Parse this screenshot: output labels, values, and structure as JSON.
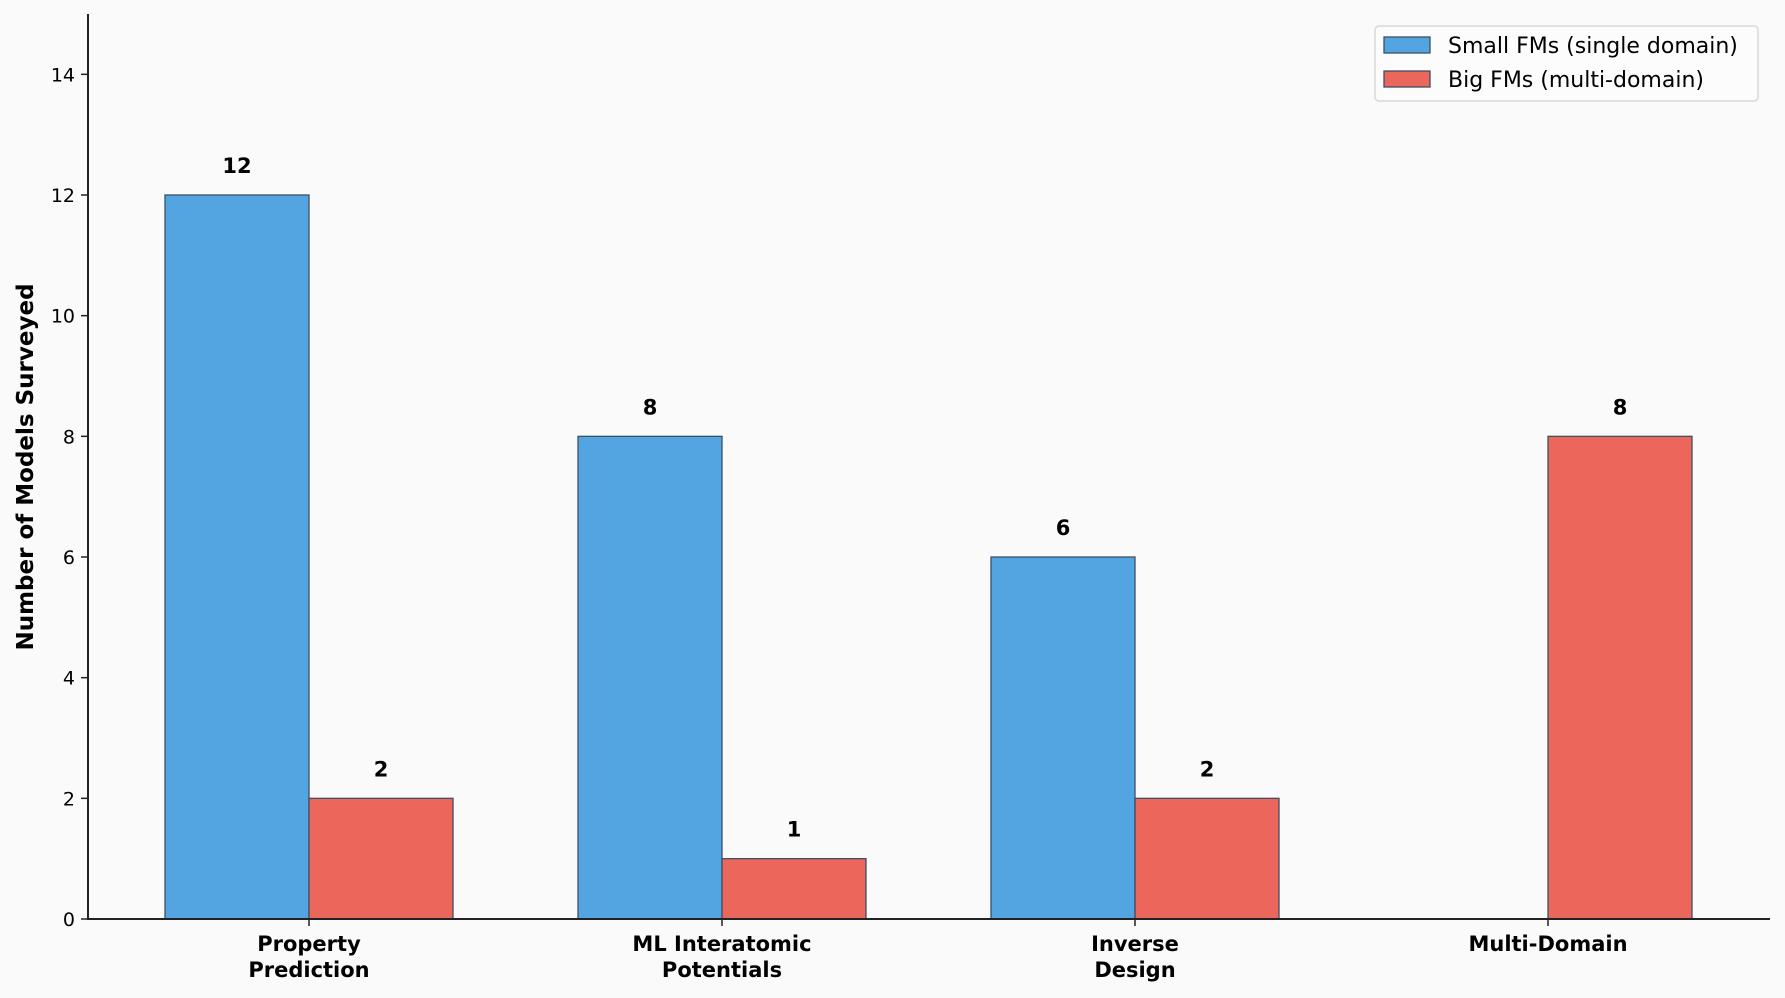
{
  "chart_data": {
    "type": "bar",
    "title": "",
    "xlabel": "",
    "ylabel": "Number of Models Surveyed",
    "categories": [
      [
        "Property",
        "Prediction"
      ],
      [
        "ML Interatomic",
        "Potentials"
      ],
      [
        "Inverse",
        "Design"
      ],
      [
        "Multi-Domain"
      ]
    ],
    "category_names": [
      "Property Prediction",
      "ML Interatomic Potentials",
      "Inverse Design",
      "Multi-Domain"
    ],
    "series": [
      {
        "name": "Small FMs (single domain)",
        "color": "#52a5e0",
        "values": [
          12,
          8,
          6,
          0
        ],
        "labels": [
          "12",
          "8",
          "6",
          null
        ]
      },
      {
        "name": "Big FMs (multi-domain)",
        "color": "#eb665b",
        "values": [
          2,
          1,
          2,
          8
        ],
        "labels": [
          "2",
          "1",
          "2",
          "8"
        ]
      }
    ],
    "ylim": [
      0,
      15
    ],
    "yticks": [
      0,
      2,
      4,
      6,
      8,
      10,
      12,
      14
    ],
    "grid": false,
    "legend_position": "upper right",
    "background": "#fafafa",
    "edge_color": "#3f4f63"
  }
}
